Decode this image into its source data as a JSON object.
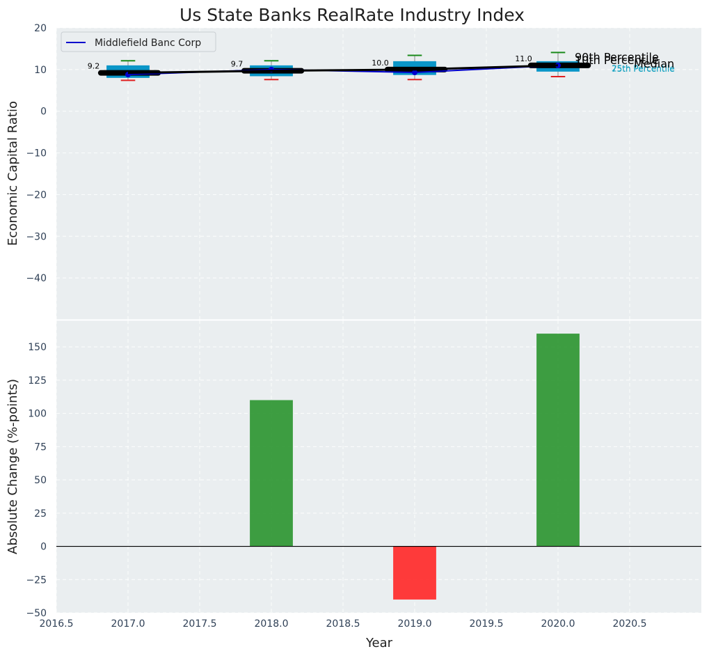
{
  "chart_data": [
    {
      "id": "top",
      "type": "boxplot-line",
      "title": "Us State Banks RealRate Industry Index",
      "ylabel": "Economic Capital Ratio",
      "xlim": [
        2016.5,
        2021.0
      ],
      "ylim": [
        -50,
        20
      ],
      "yticks": [
        20,
        10,
        0,
        -10,
        -20,
        -30,
        -40
      ],
      "yticklabels": [
        "20",
        "10",
        "0",
        "−10",
        "−20",
        "−30",
        "−40"
      ],
      "boxes": [
        {
          "x": 2017,
          "p10": 7.4,
          "q1": 8.0,
          "median": 9.2,
          "q3": 11.0,
          "p90": 12.1
        },
        {
          "x": 2018,
          "p10": 7.6,
          "q1": 8.4,
          "median": 9.7,
          "q3": 11.0,
          "p90": 12.1
        },
        {
          "x": 2019,
          "p10": 7.6,
          "q1": 8.7,
          "median": 10.0,
          "q3": 12.0,
          "p90": 13.4
        },
        {
          "x": 2020,
          "p10": 8.3,
          "q1": 9.5,
          "median": 11.0,
          "q3": 12.0,
          "p90": 14.1
        }
      ],
      "median_line": {
        "x": [
          2017,
          2018,
          2019,
          2020
        ],
        "y": [
          9.2,
          9.7,
          10.0,
          11.0
        ]
      },
      "median_labels": [
        "9.2",
        "9.7",
        "10.0",
        "11.0"
      ],
      "company_series": {
        "name": "Middlefield Banc Corp",
        "x": [
          2017,
          2018,
          2019,
          2020
        ],
        "y": [
          8.8,
          10.0,
          9.3,
          11.0
        ],
        "color": "#0000cc"
      },
      "legend": {
        "label": "Middlefield Banc Corp",
        "position": "upper-left"
      },
      "percentile_labels": {
        "p90": "90th Percentile",
        "median": "Median",
        "p10": "10th Percentile",
        "q3": "75th Percentile",
        "q1": "25th Percentile"
      }
    },
    {
      "id": "bottom",
      "type": "bar",
      "xlabel": "Year",
      "ylabel": "Absolute Change (%-points)",
      "xlim": [
        2016.5,
        2021.0
      ],
      "ylim": [
        -50,
        170
      ],
      "yticks": [
        150,
        125,
        100,
        75,
        50,
        25,
        0,
        -25,
        -50
      ],
      "yticklabels": [
        "150",
        "125",
        "100",
        "75",
        "50",
        "25",
        "0",
        "−25",
        "−50"
      ],
      "xticks": [
        2016.5,
        2017.0,
        2017.5,
        2018.0,
        2018.5,
        2019.0,
        2019.5,
        2020.0,
        2020.5
      ],
      "xticklabels": [
        "2016.5",
        "2017.0",
        "2017.5",
        "2018.0",
        "2018.5",
        "2019.0",
        "2019.5",
        "2020.0",
        "2020.5"
      ],
      "bars": [
        {
          "x": 2018,
          "value": 110
        },
        {
          "x": 2019,
          "value": -40
        },
        {
          "x": 2020,
          "value": 160
        }
      ],
      "colors": {
        "positive": "#2e9632",
        "negative": "#ff2a2a"
      }
    }
  ],
  "colors": {
    "plot_bg": "#eaeef0",
    "box": "#0a96c8",
    "p90_cap": "#1a8a1a",
    "p10_cap": "#e02020",
    "median_line": "#000000"
  }
}
